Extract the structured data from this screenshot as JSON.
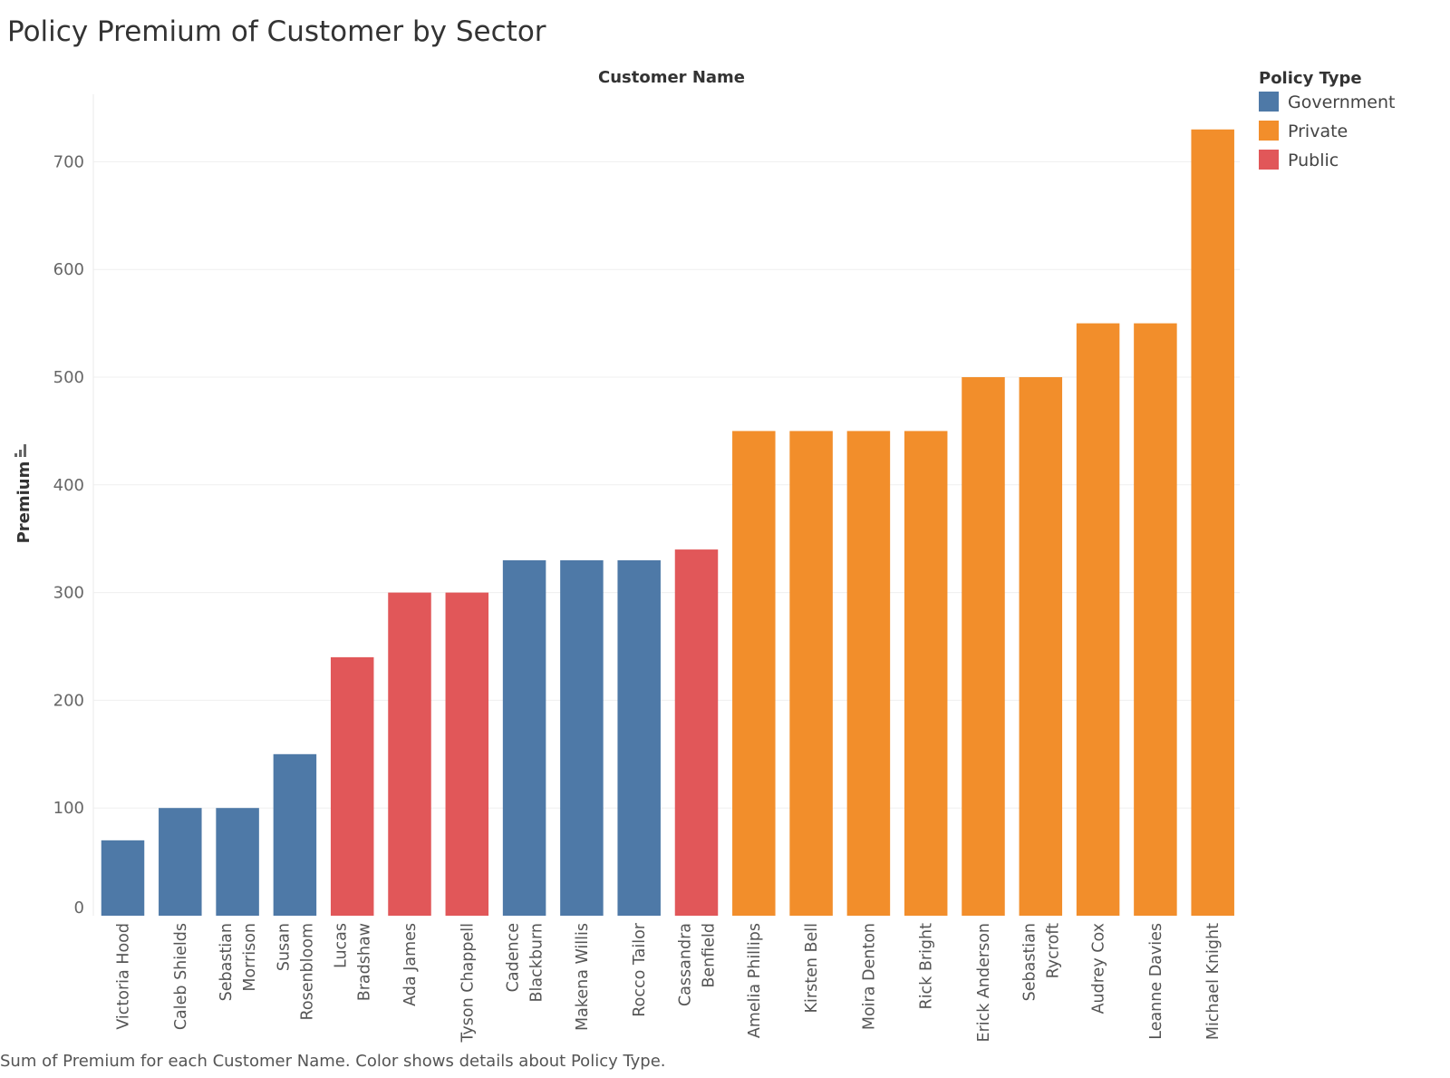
{
  "chart_data": {
    "type": "bar",
    "title": "Policy Premium of Customer by Sector",
    "column_header": "Customer Name",
    "ylabel": "Premium",
    "xlabel": "",
    "ylim": [
      0,
      760
    ],
    "yticks": [
      0,
      100,
      200,
      300,
      400,
      500,
      600,
      700
    ],
    "grid": true,
    "legend": {
      "title": "Policy Type",
      "position": "top-right",
      "entries": [
        {
          "name": "Government",
          "color": "#4e79a7"
        },
        {
          "name": "Private",
          "color": "#f28e2b"
        },
        {
          "name": "Public",
          "color": "#e15759"
        }
      ]
    },
    "categories": [
      "Victoria Hood",
      "Caleb Shields",
      "Sebastian Morrison",
      "Susan Rosenbloom",
      "Lucas Bradshaw",
      "Ada James",
      "Tyson Chappell",
      "Cadence Blackburn",
      "Makena Willis",
      "Rocco Tailor",
      "Cassandra Benfield",
      "Amelia Phillips",
      "Kirsten Bell",
      "Moira Denton",
      "Rick Bright",
      "Erick Anderson",
      "Sebastian Rycroft",
      "Audrey Cox",
      "Leanne Davies",
      "Michael Knight"
    ],
    "category_label_lines": [
      [
        "Victoria Hood"
      ],
      [
        "Caleb Shields"
      ],
      [
        "Sebastian",
        "Morrison"
      ],
      [
        "Susan",
        "Rosenbloom"
      ],
      [
        "Lucas",
        "Bradshaw"
      ],
      [
        "Ada James"
      ],
      [
        "Tyson Chappell"
      ],
      [
        "Cadence",
        "Blackburn"
      ],
      [
        "Makena Willis"
      ],
      [
        "Rocco Tailor"
      ],
      [
        "Cassandra",
        "Benfield"
      ],
      [
        "Amelia Phillips"
      ],
      [
        "Kirsten Bell"
      ],
      [
        "Moira Denton"
      ],
      [
        "Rick Bright"
      ],
      [
        "Erick Anderson"
      ],
      [
        "Sebastian",
        "Rycroft"
      ],
      [
        "Audrey Cox"
      ],
      [
        "Leanne Davies"
      ],
      [
        "Michael Knight"
      ]
    ],
    "values": [
      70,
      100,
      100,
      150,
      240,
      300,
      300,
      330,
      330,
      330,
      340,
      450,
      450,
      450,
      450,
      500,
      500,
      550,
      550,
      730
    ],
    "policy_types": [
      "Government",
      "Government",
      "Government",
      "Government",
      "Public",
      "Public",
      "Public",
      "Government",
      "Government",
      "Government",
      "Public",
      "Private",
      "Private",
      "Private",
      "Private",
      "Private",
      "Private",
      "Private",
      "Private",
      "Private"
    ]
  },
  "caption": "Sum of Premium for each Customer Name.  Color shows details about Policy Type."
}
